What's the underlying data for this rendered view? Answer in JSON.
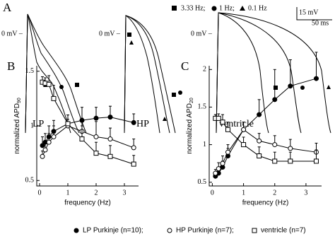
{
  "panels": {
    "a": "A",
    "b": "B",
    "c": "C"
  },
  "legend_a": [
    "3.33 Hz;",
    "1 Hz;",
    "0.1 Hz"
  ],
  "scale": {
    "v": "15 mV",
    "t": "50 ms"
  },
  "zero_label": "0 mV –",
  "traces": [
    "LP",
    "HP",
    "ventricle"
  ],
  "chart_data": [
    {
      "type": "line",
      "x_label": "frequency (Hz)",
      "y_label": "normalized APD",
      "y_label_sub": "90",
      "x": [
        0.1,
        0.2,
        0.33,
        0.5,
        1,
        1.5,
        2,
        2.5,
        3.33
      ],
      "xlim": [
        -0.1,
        3.5
      ],
      "xticks": [
        0,
        1,
        2,
        3
      ],
      "ylim": [
        0.45,
        1.55
      ],
      "yticks": [
        0.5,
        1,
        1.5
      ],
      "series": [
        {
          "name": "LP Purkinje (n=10);",
          "color": "#000",
          "marker": "filled-circle",
          "values": [
            0.82,
            0.85,
            0.9,
            0.95,
            1.02,
            1.05,
            1.07,
            1.08,
            1.03
          ],
          "errors": [
            0.08,
            0.08,
            0.1,
            0.1,
            0.08,
            0.12,
            0.1,
            0.1,
            0.08
          ]
        },
        {
          "name": "HP Purkinje (n=7);",
          "color": "#000",
          "marker": "open-circle",
          "values": [
            0.72,
            0.78,
            0.85,
            0.9,
            1.0,
            0.95,
            0.9,
            0.88,
            0.8
          ],
          "errors": [
            0.05,
            0.06,
            0.08,
            0.1,
            0.06,
            0.12,
            0.14,
            0.1,
            0.08
          ]
        },
        {
          "name": "ventricle (n=7)",
          "color": "#000",
          "marker": "open-square",
          "values": [
            1.4,
            1.39,
            1.38,
            1.25,
            1.02,
            0.88,
            0.75,
            0.72,
            0.65
          ],
          "errors": [
            0.05,
            0.05,
            0.08,
            0.12,
            0.08,
            0.12,
            0.1,
            0.1,
            0.08
          ]
        }
      ]
    },
    {
      "type": "line",
      "x_label": "frequency (Hz)",
      "y_label": "normalized APD",
      "y_label_sub": "20",
      "x": [
        0.1,
        0.2,
        0.33,
        0.5,
        1,
        1.5,
        2,
        2.5,
        3.33
      ],
      "xlim": [
        -0.1,
        3.5
      ],
      "xticks": [
        0,
        1,
        2,
        3
      ],
      "ylim": [
        0.45,
        2.05
      ],
      "yticks": [
        0.5,
        1,
        1.5,
        2
      ],
      "series": [
        {
          "name": "LP Purkinje (n=10);",
          "color": "#000",
          "marker": "filled-circle",
          "values": [
            0.58,
            0.62,
            0.7,
            0.85,
            1.2,
            1.4,
            1.6,
            1.78,
            1.88
          ],
          "errors": [
            0.05,
            0.06,
            0.08,
            0.1,
            0.1,
            0.2,
            0.4,
            0.35,
            0.35
          ]
        },
        {
          "name": "HP Purkinje (n=7);",
          "color": "#000",
          "marker": "open-circle",
          "values": [
            0.62,
            0.68,
            0.75,
            0.9,
            1.2,
            1.05,
            1.0,
            0.95,
            0.9
          ],
          "errors": [
            0.05,
            0.08,
            0.1,
            0.1,
            0.1,
            0.1,
            0.12,
            0.12,
            0.12
          ]
        },
        {
          "name": "ventricle (n=7)",
          "color": "#000",
          "marker": "open-square",
          "values": [
            1.35,
            1.35,
            1.3,
            1.2,
            1.0,
            0.85,
            0.78,
            0.78,
            0.78
          ],
          "errors": [
            0.05,
            0.06,
            0.1,
            0.1,
            0.1,
            0.12,
            0.12,
            0.12,
            0.15
          ]
        }
      ]
    }
  ]
}
